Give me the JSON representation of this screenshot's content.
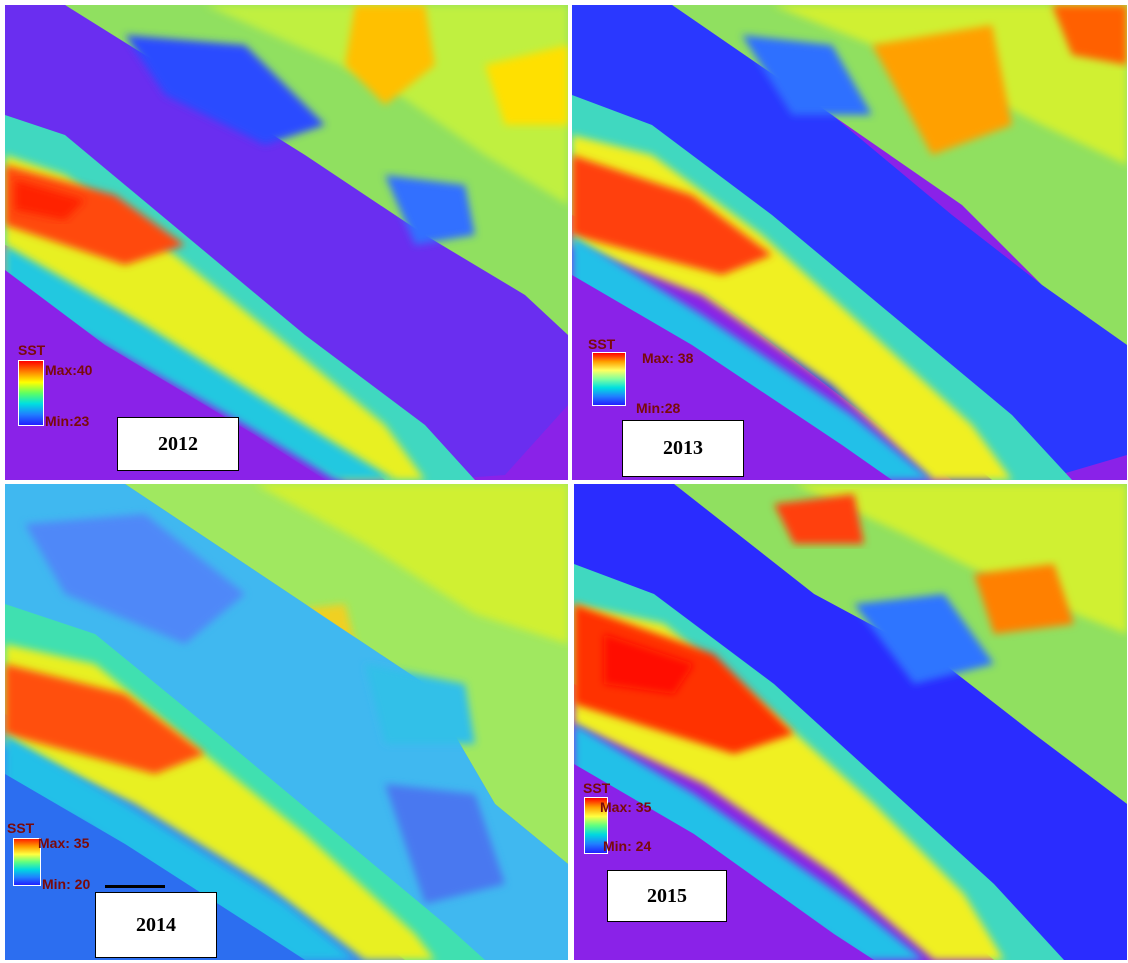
{
  "panels": [
    {
      "year": "2012",
      "legend": {
        "title": "SST",
        "max_label": "Max:40",
        "min_label": "Min:23"
      },
      "range": {
        "max": 40,
        "min": 23
      }
    },
    {
      "year": "2013",
      "legend": {
        "title": "SST",
        "max_label": "Max: 38",
        "min_label": "Min:28"
      },
      "range": {
        "max": 38,
        "min": 28
      }
    },
    {
      "year": "2014",
      "legend": {
        "title": "SST",
        "max_label": "Max: 35",
        "min_label": "Min: 20"
      },
      "range": {
        "max": 35,
        "min": 20
      }
    },
    {
      "year": "2015",
      "legend": {
        "title": "SST",
        "max_label": "Max: 35",
        "min_label": "Min: 24"
      },
      "range": {
        "max": 35,
        "min": 24
      }
    }
  ],
  "colormap": [
    "#ff0000",
    "#ff8000",
    "#ffff00",
    "#80ff40",
    "#00e0e0",
    "#2080ff",
    "#2020ff",
    "#8a22e8"
  ]
}
